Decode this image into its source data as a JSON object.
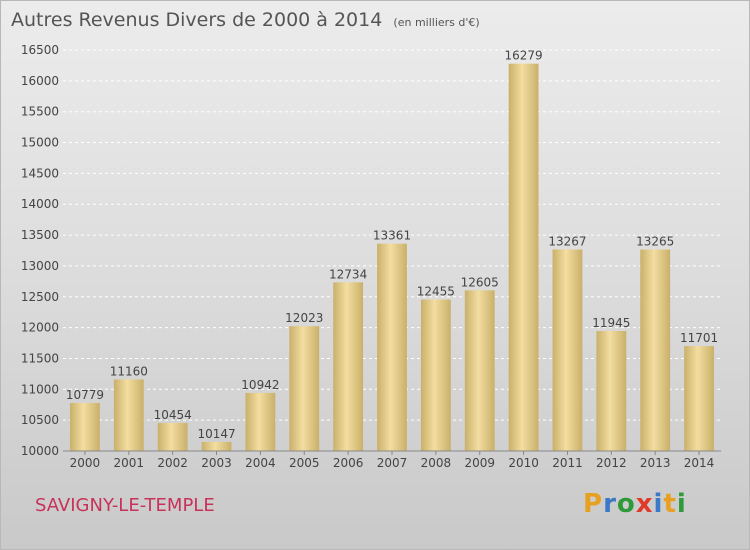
{
  "header": {
    "title": "Autres Revenus Divers de 2000 à 2014",
    "subtitle": "(en milliers d'€)"
  },
  "footer": {
    "city": "SAVIGNY-LE-TEMPLE",
    "logo": {
      "letters": [
        "P",
        "r",
        "o",
        "x",
        "i",
        "t",
        "i"
      ],
      "colors": [
        "#e8a020",
        "#3a78c8",
        "#2e9a3a",
        "#e23a2a",
        "#3a78c8",
        "#e8a020",
        "#2e9a3a"
      ]
    }
  },
  "colors": {
    "bar_light": "#f3dda0",
    "bar_dark": "#c9b06a",
    "grid": "#ffffff",
    "text": "#444444"
  },
  "chart_data": {
    "type": "bar",
    "title": "Autres Revenus Divers de 2000 à 2014",
    "subtitle": "(en milliers d'€)",
    "categories": [
      "2000",
      "2001",
      "2002",
      "2003",
      "2004",
      "2005",
      "2006",
      "2007",
      "2008",
      "2009",
      "2010",
      "2011",
      "2012",
      "2013",
      "2014"
    ],
    "values": [
      10779,
      11160,
      10454,
      10147,
      10942,
      12023,
      12734,
      13361,
      12455,
      12605,
      16279,
      13267,
      11945,
      13265,
      11701
    ],
    "ylim": [
      10000,
      16500
    ],
    "yticks": [
      10000,
      10500,
      11000,
      11500,
      12000,
      12500,
      13000,
      13500,
      14000,
      14500,
      15000,
      15500,
      16000,
      16500
    ],
    "grid": true,
    "data_labels": true
  }
}
